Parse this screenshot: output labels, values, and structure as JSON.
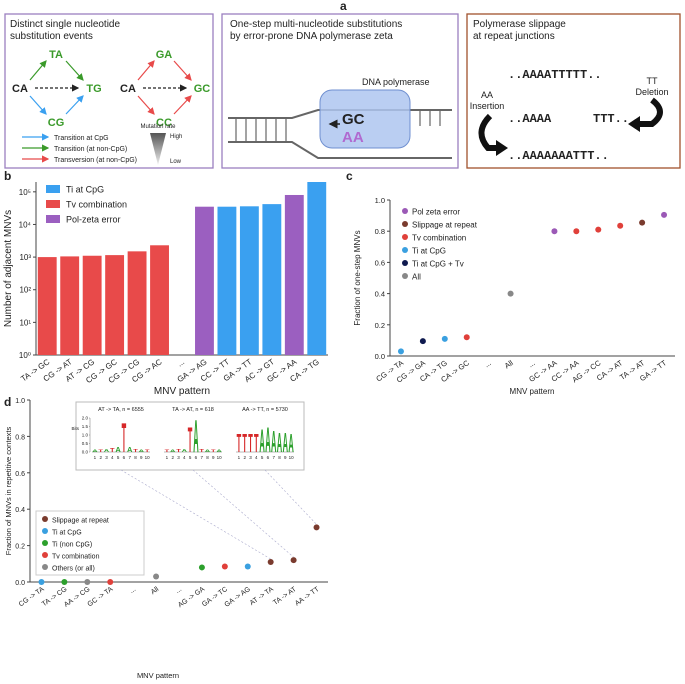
{
  "panel_labels": [
    "a",
    "b",
    "c",
    "d"
  ],
  "diagrams": {
    "box1": {
      "title_lines": [
        "Distinct single nucleotide",
        "substitution events"
      ],
      "nodes": [
        "CA",
        "TA",
        "CG",
        "TG",
        "CA",
        "GA",
        "CC",
        "GC"
      ],
      "legend": [
        "Transition at CpG",
        "Transition (at non-CpG)",
        "Transversion (at non-CpG)"
      ],
      "rate_title": "Mutation rate",
      "rate_high": "High",
      "rate_low": "Low"
    },
    "box2": {
      "title_lines": [
        "One-step multi-nucleotide substitutions",
        "by error-prone DNA polymerase zeta"
      ],
      "polymerase": "DNA polymerase",
      "pair_top": "GC",
      "pair_bottom": "AA"
    },
    "box3": {
      "title_lines": [
        "Polymerase slippage",
        "at repeat junctions"
      ],
      "seq_top": "..AAAATTTTT..",
      "seq_mid_left": "..AAAA",
      "seq_mid_right": "TTT..",
      "seq_bottom": "..AAAAAAATTT..",
      "deletion_lines": [
        "TT",
        "Deletion"
      ],
      "insertion_lines": [
        "AA",
        "Insertion"
      ]
    }
  },
  "chart_data": [
    {
      "type": "bar",
      "yscale": "log",
      "x_label": "MNV pattern",
      "y_label": "Number of adjacent MNVs",
      "categories": [
        "TA -> GC",
        "CG -> AT",
        "AT -> CG",
        "CG -> GC",
        "CG -> CG",
        "CG -> AC",
        "...",
        "GA -> AG",
        "CC -> TT",
        "GA -> TT",
        "AC -> GT",
        "GC -> AA",
        "CA -> TG"
      ],
      "series": [
        {
          "name": "Ti at CpG",
          "color": "#3aa0f0",
          "values": [
            null,
            null,
            null,
            null,
            null,
            null,
            null,
            null,
            35000,
            36000,
            42000,
            null,
            200000
          ]
        },
        {
          "name": "Tv combination",
          "color": "#e84a4a",
          "values": [
            1000,
            1050,
            1100,
            1150,
            1500,
            2300,
            null,
            null,
            null,
            null,
            null,
            null,
            null
          ]
        },
        {
          "name": "Pol-zeta error",
          "color": "#9b5fc0",
          "values": [
            null,
            null,
            null,
            null,
            null,
            null,
            null,
            35000,
            null,
            null,
            null,
            80000,
            null
          ]
        }
      ],
      "ylim": [
        1,
        200000
      ],
      "yticks": [
        {
          "value": 1,
          "label": "10⁰"
        },
        {
          "value": 10,
          "label": "10¹"
        },
        {
          "value": 100,
          "label": "10²"
        },
        {
          "value": 1000,
          "label": "10³"
        },
        {
          "value": 10000,
          "label": "10⁴"
        },
        {
          "value": 100000,
          "label": "10⁵"
        }
      ],
      "legend": "upper left",
      "grid": false
    },
    {
      "type": "scatter",
      "x_label": "MNV pattern",
      "y_label": "Fraction of one-step MNVs",
      "categories": [
        "CG -> TA",
        "CG -> GA",
        "CA -> TG",
        "CA -> GC",
        "...",
        "All",
        "...",
        "GC -> AA",
        "CC -> AA",
        "AG -> CC",
        "CA -> AT",
        "TA -> AT",
        "GA -> TT"
      ],
      "series": [
        {
          "name": "Pol zeta error",
          "color": "#9b59b6",
          "values": [
            null,
            null,
            null,
            null,
            null,
            null,
            null,
            0.8,
            null,
            null,
            null,
            null,
            0.905
          ]
        },
        {
          "name": "Slippage at repeat",
          "color": "#7a3b2e",
          "values": [
            null,
            null,
            null,
            null,
            null,
            null,
            null,
            null,
            null,
            null,
            null,
            0.855,
            null
          ]
        },
        {
          "name": "Tv combination",
          "color": "#e0403a",
          "values": [
            null,
            null,
            null,
            0.12,
            null,
            null,
            null,
            null,
            0.8,
            0.81,
            0.835,
            null,
            null
          ]
        },
        {
          "name": "Ti at CpG",
          "color": "#3aa0e0",
          "values": [
            0.03,
            null,
            0.11,
            null,
            null,
            null,
            null,
            null,
            null,
            null,
            null,
            null,
            null
          ]
        },
        {
          "name": "Ti at CpG + Tv",
          "color": "#0f1a4f",
          "values": [
            null,
            0.095,
            null,
            null,
            null,
            null,
            null,
            null,
            null,
            null,
            null,
            null,
            null
          ]
        },
        {
          "name": "All",
          "color": "#888888",
          "values": [
            null,
            null,
            null,
            null,
            null,
            0.4,
            null,
            null,
            null,
            null,
            null,
            null,
            null
          ]
        }
      ],
      "ylim": [
        0,
        1
      ],
      "yticks": [
        {
          "value": 0,
          "label": "0.0"
        },
        {
          "value": 0.2,
          "label": "0.2"
        },
        {
          "value": 0.4,
          "label": "0.4"
        },
        {
          "value": 0.6,
          "label": "0.6"
        },
        {
          "value": 0.8,
          "label": "0.8"
        },
        {
          "value": 1,
          "label": "1.0"
        }
      ],
      "legend": "upper left",
      "grid": false
    },
    {
      "type": "scatter",
      "x_label": "MNV pattern",
      "y_label": "Fraction of MNVs in repetitive contexts",
      "categories": [
        "CG -> TA",
        "TA -> CG",
        "AA -> CG",
        "GC -> TA",
        "...",
        "All",
        "...",
        "AG -> GA",
        "GA -> TC",
        "GA -> AG",
        "AT -> TA",
        "TA -> AT",
        "AA -> TT"
      ],
      "series": [
        {
          "name": "Slippage at repeat",
          "color": "#7a3b2e",
          "values": [
            null,
            null,
            null,
            null,
            null,
            null,
            null,
            null,
            null,
            null,
            0.11,
            0.12,
            0.3
          ]
        },
        {
          "name": "Ti at CpG",
          "color": "#3aa0e0",
          "values": [
            0,
            null,
            null,
            null,
            null,
            null,
            null,
            null,
            null,
            0.085,
            null,
            null,
            null
          ]
        },
        {
          "name": "Ti (non CpG)",
          "color": "#2ca02c",
          "values": [
            null,
            0,
            null,
            null,
            null,
            null,
            null,
            0.08,
            null,
            null,
            null,
            null,
            null
          ]
        },
        {
          "name": "Tv combination",
          "color": "#e0403a",
          "values": [
            null,
            null,
            null,
            0,
            null,
            null,
            null,
            null,
            0.085,
            null,
            null,
            null,
            null
          ]
        },
        {
          "name": "Others (or all)",
          "color": "#888888",
          "values": [
            null,
            null,
            0,
            null,
            null,
            0.03,
            null,
            null,
            null,
            null,
            null,
            null,
            null
          ]
        }
      ],
      "ylim": [
        0,
        1
      ],
      "yticks": [
        {
          "value": 0,
          "label": "0.0"
        },
        {
          "value": 0.2,
          "label": "0.2"
        },
        {
          "value": 0.4,
          "label": "0.4"
        },
        {
          "value": 0.6,
          "label": "0.6"
        },
        {
          "value": 0.8,
          "label": "0.8"
        },
        {
          "value": 1,
          "label": "1.0"
        }
      ],
      "legend": "lower left",
      "grid": false,
      "inset": {
        "y_label": "Bits",
        "ylim": [
          0,
          2
        ],
        "yticks": [
          {
            "value": 0,
            "label": "0.0"
          },
          {
            "value": 0.5,
            "label": "0.5"
          },
          {
            "value": 1,
            "label": "1.0"
          },
          {
            "value": 1.5,
            "label": "1.5"
          },
          {
            "value": 2,
            "label": "2.0"
          }
        ],
        "positions": [
          1,
          2,
          3,
          4,
          5,
          6,
          7,
          8,
          9,
          10
        ],
        "logos": [
          {
            "title": "AT -> TA, n = 6555",
            "letters": [
              {
                "pos": 1,
                "char": "A",
                "bits": 0.15
              },
              {
                "pos": 2,
                "char": "T",
                "bits": 0.15
              },
              {
                "pos": 3,
                "char": "A",
                "bits": 0.2
              },
              {
                "pos": 4,
                "char": "T",
                "bits": 0.25
              },
              {
                "pos": 5,
                "char": "A",
                "bits": 0.3
              },
              {
                "pos": 6,
                "char": "T",
                "bits": 1.8
              },
              {
                "pos": 7,
                "char": "A",
                "bits": 0.3
              },
              {
                "pos": 8,
                "char": "T",
                "bits": 0.2
              },
              {
                "pos": 9,
                "char": "A",
                "bits": 0.15
              },
              {
                "pos": 10,
                "char": "T",
                "bits": 0.15
              }
            ]
          },
          {
            "title": "TA -> AT, n = 618",
            "letters": [
              {
                "pos": 1,
                "char": "T",
                "bits": 0.15
              },
              {
                "pos": 2,
                "char": "A",
                "bits": 0.15
              },
              {
                "pos": 3,
                "char": "T",
                "bits": 0.2
              },
              {
                "pos": 4,
                "char": "A",
                "bits": 0.2
              },
              {
                "pos": 5,
                "char": "T",
                "bits": 1.5
              },
              {
                "pos": 6,
                "char": "A",
                "bits": 2
              },
              {
                "pos": 7,
                "char": "T",
                "bits": 0.2
              },
              {
                "pos": 8,
                "char": "A",
                "bits": 0.15
              },
              {
                "pos": 9,
                "char": "T",
                "bits": 0.15
              },
              {
                "pos": 10,
                "char": "A",
                "bits": 0.15
              }
            ]
          },
          {
            "title": "AA -> TT, n = 5730",
            "letters": [
              {
                "pos": 1,
                "char": "T",
                "bits": 1.1
              },
              {
                "pos": 2,
                "char": "T",
                "bits": 1.1
              },
              {
                "pos": 3,
                "char": "T",
                "bits": 1.1
              },
              {
                "pos": 4,
                "char": "T",
                "bits": 1.1
              },
              {
                "pos": 5,
                "char": "A",
                "bits": 1.4
              },
              {
                "pos": 6,
                "char": "A",
                "bits": 1.5
              },
              {
                "pos": 7,
                "char": "A",
                "bits": 1.3
              },
              {
                "pos": 8,
                "char": "A",
                "bits": 1.2
              },
              {
                "pos": 9,
                "char": "A",
                "bits": 1.2
              },
              {
                "pos": 10,
                "char": "A",
                "bits": 1.1
              }
            ]
          }
        ]
      }
    }
  ]
}
